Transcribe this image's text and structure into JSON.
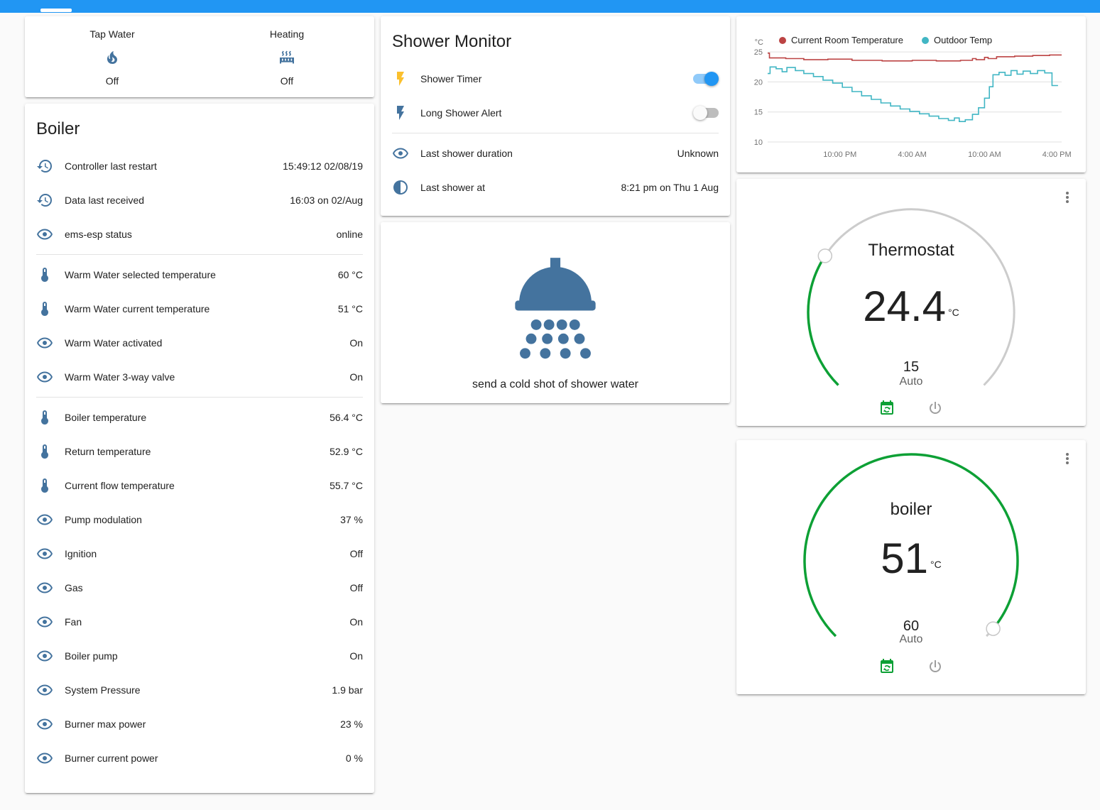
{
  "accent_color": "#2196f3",
  "glance": {
    "items": [
      {
        "label": "Tap Water",
        "icon": "fire-icon",
        "state": "Off"
      },
      {
        "label": "Heating",
        "icon": "radiator-icon",
        "state": "Off"
      }
    ]
  },
  "boiler_card": {
    "title": "Boiler",
    "sections": [
      {
        "rows": [
          {
            "icon": "history-icon",
            "label": "Controller last restart",
            "value": "15:49:12 02/08/19"
          },
          {
            "icon": "history-icon",
            "label": "Data last received",
            "value": "16:03 on 02/Aug"
          },
          {
            "icon": "eye-icon",
            "label": "ems-esp status",
            "value": "online"
          }
        ]
      },
      {
        "rows": [
          {
            "icon": "thermometer-icon",
            "label": "Warm Water selected temperature",
            "value": "60 °C"
          },
          {
            "icon": "thermometer-icon",
            "label": "Warm Water current temperature",
            "value": "51 °C"
          },
          {
            "icon": "eye-icon",
            "label": "Warm Water activated",
            "value": "On"
          },
          {
            "icon": "eye-icon",
            "label": "Warm Water 3-way valve",
            "value": "On"
          }
        ]
      },
      {
        "rows": [
          {
            "icon": "thermometer-icon",
            "label": "Boiler temperature",
            "value": "56.4 °C"
          },
          {
            "icon": "thermometer-icon",
            "label": "Return temperature",
            "value": "52.9 °C"
          },
          {
            "icon": "thermometer-icon",
            "label": "Current flow temperature",
            "value": "55.7 °C"
          },
          {
            "icon": "eye-icon",
            "label": "Pump modulation",
            "value": "37 %"
          },
          {
            "icon": "eye-icon",
            "label": "Ignition",
            "value": "Off"
          },
          {
            "icon": "eye-icon",
            "label": "Gas",
            "value": "Off"
          },
          {
            "icon": "eye-icon",
            "label": "Fan",
            "value": "On"
          },
          {
            "icon": "eye-icon",
            "label": "Boiler pump",
            "value": "On"
          },
          {
            "icon": "eye-icon",
            "label": "System Pressure",
            "value": "1.9 bar"
          },
          {
            "icon": "eye-icon",
            "label": "Burner max power",
            "value": "23 %"
          },
          {
            "icon": "eye-icon",
            "label": "Burner current power",
            "value": "0 %"
          }
        ]
      }
    ]
  },
  "shower_monitor": {
    "title": "Shower Monitor",
    "toggles": [
      {
        "icon": "flash-icon",
        "label": "Shower Timer",
        "on": true
      },
      {
        "icon": "flash-icon",
        "label": "Long Shower Alert",
        "on": false
      }
    ],
    "info": [
      {
        "icon": "eye-icon",
        "label": "Last shower duration",
        "value": "Unknown"
      },
      {
        "icon": "clock-half-icon",
        "label": "Last shower at",
        "value": "8:21 pm on Thu 1 Aug"
      }
    ]
  },
  "shower_action": {
    "label": "send a cold shot of shower water"
  },
  "chart_data": {
    "type": "line",
    "y_unit": "°C",
    "legend_position": "top",
    "xlim": [
      0,
      24.4
    ],
    "ylim": [
      10,
      26.2
    ],
    "ygrid": [
      10,
      15,
      20,
      25
    ],
    "xticks": [
      6,
      12,
      18,
      24
    ],
    "xtick_labels": [
      "10:00 PM",
      "4:00 AM",
      "10:00 AM",
      "4:00 PM"
    ],
    "series": [
      {
        "name": "Current Room Temperature",
        "color": "#bc4343",
        "points": [
          [
            0,
            24.8
          ],
          [
            0.15,
            24.8
          ],
          [
            0.15,
            24.0
          ],
          [
            1.5,
            24.0
          ],
          [
            1.5,
            23.9
          ],
          [
            3,
            23.9
          ],
          [
            3,
            23.7
          ],
          [
            5,
            23.7
          ],
          [
            5,
            23.8
          ],
          [
            7,
            23.8
          ],
          [
            7,
            23.6
          ],
          [
            9.5,
            23.6
          ],
          [
            9.5,
            23.5
          ],
          [
            12,
            23.5
          ],
          [
            12,
            23.6
          ],
          [
            14,
            23.6
          ],
          [
            14,
            23.5
          ],
          [
            16,
            23.5
          ],
          [
            16,
            23.6
          ],
          [
            17,
            23.6
          ],
          [
            17,
            23.9
          ],
          [
            17.3,
            23.9
          ],
          [
            17.3,
            23.7
          ],
          [
            18,
            23.7
          ],
          [
            18,
            24.1
          ],
          [
            18.3,
            24.1
          ],
          [
            18.3,
            23.9
          ],
          [
            19,
            23.9
          ],
          [
            19,
            24.2
          ],
          [
            20.5,
            24.2
          ],
          [
            20.5,
            24.3
          ],
          [
            22,
            24.3
          ],
          [
            22,
            24.4
          ],
          [
            23.4,
            24.4
          ],
          [
            23.4,
            24.5
          ],
          [
            24.4,
            24.5
          ]
        ]
      },
      {
        "name": "Outdoor Temp",
        "color": "#41b6c4",
        "points": [
          [
            0,
            21.4
          ],
          [
            0.2,
            21.4
          ],
          [
            0.2,
            22.5
          ],
          [
            0.7,
            22.5
          ],
          [
            0.7,
            22.2
          ],
          [
            1.2,
            22.2
          ],
          [
            1.2,
            21.7
          ],
          [
            1.6,
            21.7
          ],
          [
            1.6,
            22.4
          ],
          [
            2.3,
            22.4
          ],
          [
            2.3,
            21.9
          ],
          [
            3,
            21.9
          ],
          [
            3,
            21.4
          ],
          [
            3.8,
            21.4
          ],
          [
            3.8,
            20.9
          ],
          [
            4.6,
            20.9
          ],
          [
            4.6,
            20.3
          ],
          [
            5.4,
            20.3
          ],
          [
            5.4,
            19.8
          ],
          [
            6.2,
            19.8
          ],
          [
            6.2,
            19.1
          ],
          [
            7,
            19.1
          ],
          [
            7,
            18.4
          ],
          [
            7.8,
            18.4
          ],
          [
            7.8,
            17.7
          ],
          [
            8.6,
            17.7
          ],
          [
            8.6,
            17.1
          ],
          [
            9.4,
            17.1
          ],
          [
            9.4,
            16.5
          ],
          [
            10.2,
            16.5
          ],
          [
            10.2,
            16.0
          ],
          [
            11,
            16.0
          ],
          [
            11,
            15.5
          ],
          [
            11.8,
            15.5
          ],
          [
            11.8,
            15.1
          ],
          [
            12.6,
            15.1
          ],
          [
            12.6,
            14.7
          ],
          [
            13.4,
            14.7
          ],
          [
            13.4,
            14.3
          ],
          [
            14.2,
            14.3
          ],
          [
            14.2,
            13.9
          ],
          [
            15,
            13.9
          ],
          [
            15,
            13.6
          ],
          [
            15.5,
            13.6
          ],
          [
            15.5,
            14.0
          ],
          [
            15.9,
            14.0
          ],
          [
            15.9,
            13.4
          ],
          [
            16.4,
            13.4
          ],
          [
            16.4,
            13.7
          ],
          [
            17,
            13.7
          ],
          [
            17,
            14.6
          ],
          [
            17.5,
            14.6
          ],
          [
            17.5,
            15.7
          ],
          [
            18,
            15.7
          ],
          [
            18,
            17.3
          ],
          [
            18.4,
            17.3
          ],
          [
            18.4,
            19.2
          ],
          [
            18.7,
            19.2
          ],
          [
            18.7,
            21.2
          ],
          [
            19.2,
            21.2
          ],
          [
            19.2,
            21.6
          ],
          [
            19.7,
            21.6
          ],
          [
            19.7,
            21.1
          ],
          [
            20.2,
            21.1
          ],
          [
            20.2,
            21.9
          ],
          [
            20.7,
            21.9
          ],
          [
            20.7,
            21.3
          ],
          [
            21.2,
            21.3
          ],
          [
            21.2,
            21.8
          ],
          [
            21.8,
            21.8
          ],
          [
            21.8,
            21.4
          ],
          [
            22.4,
            21.4
          ],
          [
            22.4,
            21.9
          ],
          [
            23,
            21.9
          ],
          [
            23,
            21.5
          ],
          [
            23.6,
            21.5
          ],
          [
            23.6,
            19.4
          ],
          [
            24.1,
            19.4
          ]
        ]
      }
    ]
  },
  "gauges": [
    {
      "title": "Thermostat",
      "value": "24.4",
      "unit": "°C",
      "target": "15",
      "mode": "Auto",
      "percent": 29,
      "color": "#0da035",
      "track_color": "#cccccc"
    },
    {
      "title": "boiler",
      "value": "51",
      "unit": "°C",
      "target": "60",
      "mode": "Auto",
      "percent": 98,
      "color": "#0da035",
      "track_color": "#cccccc"
    }
  ]
}
